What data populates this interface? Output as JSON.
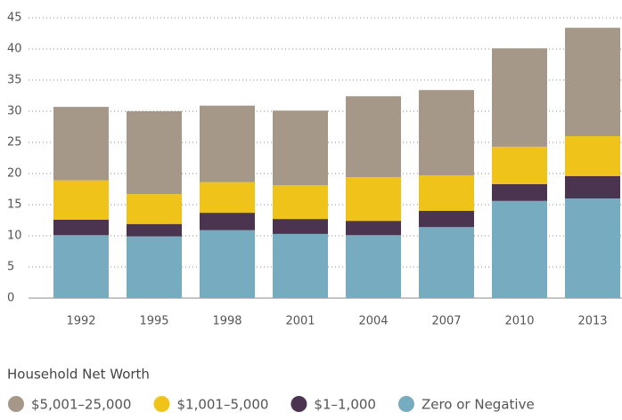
{
  "chart_data": {
    "type": "stacked_bar",
    "legend_title": "Household Net Worth",
    "categories": [
      "1992",
      "1995",
      "1998",
      "2001",
      "2004",
      "2007",
      "2010",
      "2013"
    ],
    "series": [
      {
        "name": "$5,001–25,000",
        "color": "#a59888",
        "values": [
          11.8,
          13.3,
          12.3,
          12.0,
          13.0,
          13.7,
          15.8,
          17.4
        ]
      },
      {
        "name": "$1,001–5,000",
        "color": "#f0c31a",
        "values": [
          6.3,
          4.8,
          4.9,
          5.4,
          7.0,
          5.7,
          6.0,
          6.4
        ]
      },
      {
        "name": "$1–1,000",
        "color": "#4b3450",
        "values": [
          2.5,
          2.0,
          2.8,
          2.4,
          2.3,
          2.6,
          2.7,
          3.6
        ]
      },
      {
        "name": "Zero or Negative",
        "color": "#77abbf",
        "values": [
          10.1,
          9.9,
          10.9,
          10.3,
          10.1,
          11.4,
          15.6,
          16.0
        ]
      }
    ],
    "ylim": [
      0,
      45
    ],
    "yticks": [
      0,
      5,
      10,
      15,
      20,
      25,
      30,
      35,
      40,
      45
    ],
    "grid": true,
    "legend": "bottom"
  }
}
